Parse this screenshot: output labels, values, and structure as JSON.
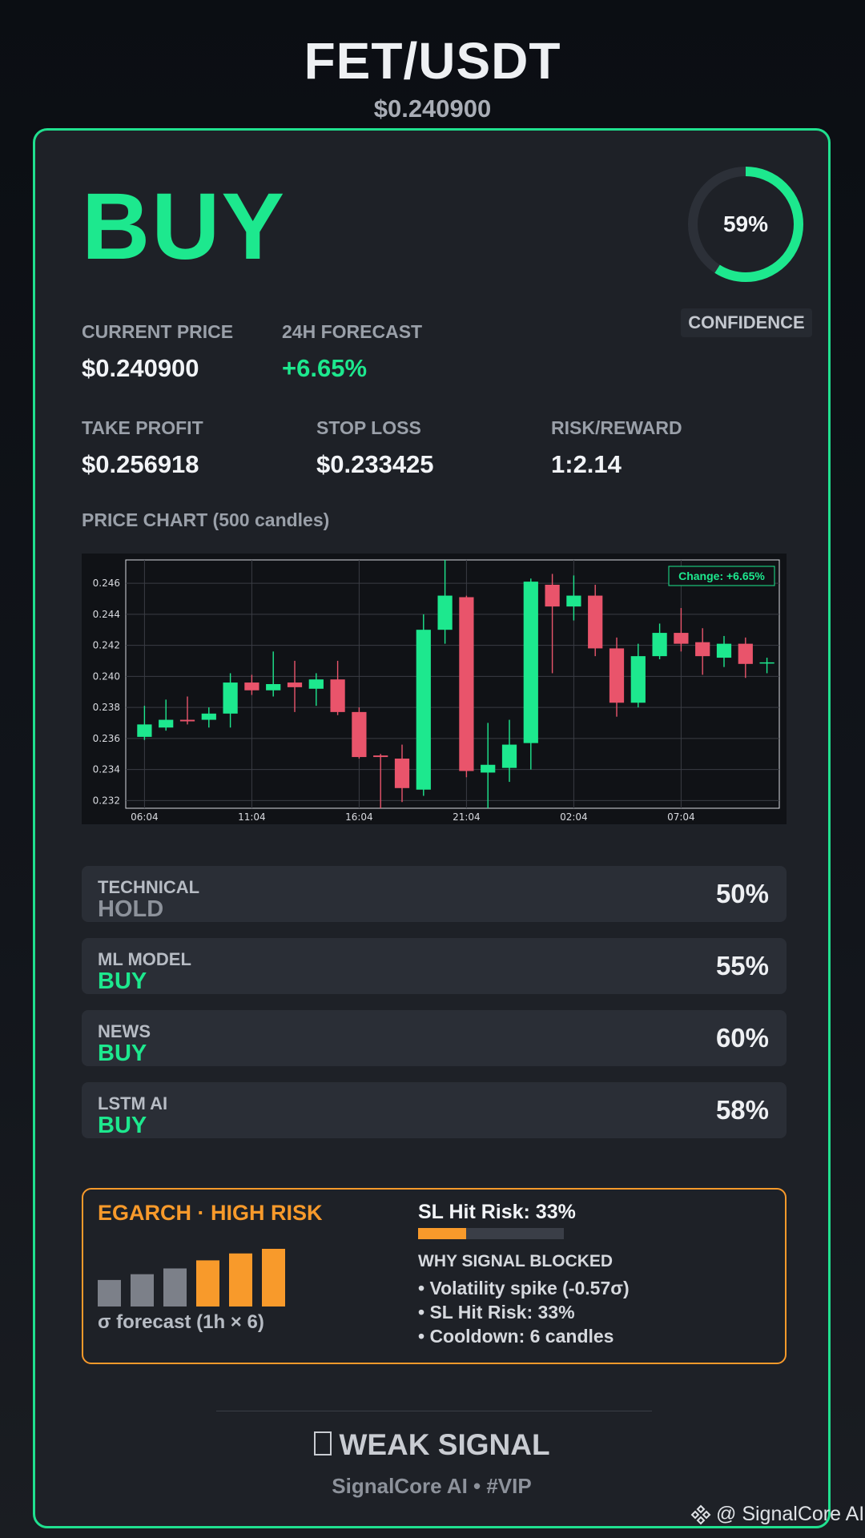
{
  "header": {
    "pair": "FET/USDT",
    "price": "$0.240900"
  },
  "signal": {
    "label": "BUY",
    "color": "#1de88e"
  },
  "confidence": {
    "value": "59%",
    "fraction": 0.59,
    "label": "CONFIDENCE"
  },
  "metrics": {
    "current_price": {
      "label": "CURRENT PRICE",
      "value": "$0.240900"
    },
    "forecast": {
      "label": "24H FORECAST",
      "value": "+6.65%"
    },
    "take_profit": {
      "label": "TAKE PROFIT",
      "value": "$0.256918"
    },
    "stop_loss": {
      "label": "STOP LOSS",
      "value": "$0.233425"
    },
    "risk_reward": {
      "label": "RISK/REWARD",
      "value": "1:2.14"
    }
  },
  "chart_title": "PRICE CHART (500 candles)",
  "chart_data": {
    "type": "candlestick",
    "annotation": "Change: +6.65%",
    "ylim": [
      0.2315,
      0.2475
    ],
    "yticks": [
      0.232,
      0.234,
      0.236,
      0.238,
      0.24,
      0.242,
      0.244,
      0.246
    ],
    "ytick_labels": [
      "0.232",
      "0.234",
      "0.236",
      "0.238",
      "0.240",
      "0.242",
      "0.244",
      "0.246"
    ],
    "xtick_labels": [
      "06:04",
      "11:04",
      "16:04",
      "21:04",
      "02:04",
      "07:04"
    ],
    "xtick_index": [
      0,
      5,
      10,
      15,
      20,
      25
    ],
    "candles": [
      {
        "o": 0.2361,
        "h": 0.2381,
        "l": 0.2359,
        "c": 0.2369
      },
      {
        "o": 0.2367,
        "h": 0.2385,
        "l": 0.2365,
        "c": 0.2372
      },
      {
        "o": 0.2372,
        "h": 0.2387,
        "l": 0.2369,
        "c": 0.2371
      },
      {
        "o": 0.2372,
        "h": 0.238,
        "l": 0.2367,
        "c": 0.2376
      },
      {
        "o": 0.2376,
        "h": 0.2402,
        "l": 0.2367,
        "c": 0.2396
      },
      {
        "o": 0.2396,
        "h": 0.2401,
        "l": 0.2388,
        "c": 0.2391
      },
      {
        "o": 0.2391,
        "h": 0.2416,
        "l": 0.2387,
        "c": 0.2395
      },
      {
        "o": 0.2396,
        "h": 0.241,
        "l": 0.2377,
        "c": 0.2393
      },
      {
        "o": 0.2392,
        "h": 0.2402,
        "l": 0.2381,
        "c": 0.2398
      },
      {
        "o": 0.2398,
        "h": 0.241,
        "l": 0.2375,
        "c": 0.2377
      },
      {
        "o": 0.2377,
        "h": 0.238,
        "l": 0.2347,
        "c": 0.2348
      },
      {
        "o": 0.2349,
        "h": 0.235,
        "l": 0.2315,
        "c": 0.2348
      },
      {
        "o": 0.2347,
        "h": 0.2356,
        "l": 0.2319,
        "c": 0.2328
      },
      {
        "o": 0.2327,
        "h": 0.244,
        "l": 0.2323,
        "c": 0.243
      },
      {
        "o": 0.243,
        "h": 0.2475,
        "l": 0.2421,
        "c": 0.2452
      },
      {
        "o": 0.2451,
        "h": 0.2452,
        "l": 0.2335,
        "c": 0.2339
      },
      {
        "o": 0.2338,
        "h": 0.237,
        "l": 0.2315,
        "c": 0.2343
      },
      {
        "o": 0.2341,
        "h": 0.2372,
        "l": 0.2332,
        "c": 0.2356
      },
      {
        "o": 0.2357,
        "h": 0.2463,
        "l": 0.234,
        "c": 0.2461
      },
      {
        "o": 0.2459,
        "h": 0.2466,
        "l": 0.2402,
        "c": 0.2445
      },
      {
        "o": 0.2445,
        "h": 0.2465,
        "l": 0.2436,
        "c": 0.2452
      },
      {
        "o": 0.2452,
        "h": 0.2459,
        "l": 0.2413,
        "c": 0.2418
      },
      {
        "o": 0.2418,
        "h": 0.2425,
        "l": 0.2374,
        "c": 0.2383
      },
      {
        "o": 0.2383,
        "h": 0.2421,
        "l": 0.238,
        "c": 0.2413
      },
      {
        "o": 0.2413,
        "h": 0.2434,
        "l": 0.2411,
        "c": 0.2428
      },
      {
        "o": 0.2428,
        "h": 0.2444,
        "l": 0.2416,
        "c": 0.2421
      },
      {
        "o": 0.2422,
        "h": 0.2431,
        "l": 0.2401,
        "c": 0.2413
      },
      {
        "o": 0.2412,
        "h": 0.2426,
        "l": 0.2406,
        "c": 0.2421
      },
      {
        "o": 0.2421,
        "h": 0.2425,
        "l": 0.2399,
        "c": 0.2408
      },
      {
        "o": 0.2409,
        "h": 0.2412,
        "l": 0.2402,
        "c": 0.2409
      }
    ],
    "up_color": "#1de88e",
    "down_color": "#e9546b"
  },
  "components": [
    {
      "label": "TECHNICAL",
      "signal": "HOLD",
      "pct": "50%"
    },
    {
      "label": "ML MODEL",
      "signal": "BUY",
      "pct": "55%"
    },
    {
      "label": "NEWS",
      "signal": "BUY",
      "pct": "60%"
    },
    {
      "label": "LSTM AI",
      "signal": "BUY",
      "pct": "58%"
    }
  ],
  "risk": {
    "title": "EGARCH · HIGH RISK",
    "sigma_caption": "σ forecast (1h × 6)",
    "sigma_bars": [
      0.46,
      0.56,
      0.66,
      0.8,
      0.92,
      1.0
    ],
    "sigma_colors": [
      "#7c8089",
      "#7c8089",
      "#7c8089",
      "#f89a2b",
      "#f89a2b",
      "#f89a2b"
    ],
    "sl_risk_label": "SL Hit Risk: 33%",
    "sl_risk_fraction": 0.33,
    "why_title": "WHY SIGNAL BLOCKED",
    "reasons": [
      "• Volatility spike (-0.57σ)",
      "• SL Hit Risk: 33%",
      "• Cooldown: 6 candles"
    ]
  },
  "footer": {
    "weak_icon": "warning-icon",
    "weak_text": "WEAK SIGNAL",
    "brand": "SignalCore AI • #VIP"
  },
  "watermark": "@ SignalCore AI",
  "colors": {
    "accent": "#20e08f",
    "warning": "#f89a2b",
    "down": "#e9546b"
  }
}
